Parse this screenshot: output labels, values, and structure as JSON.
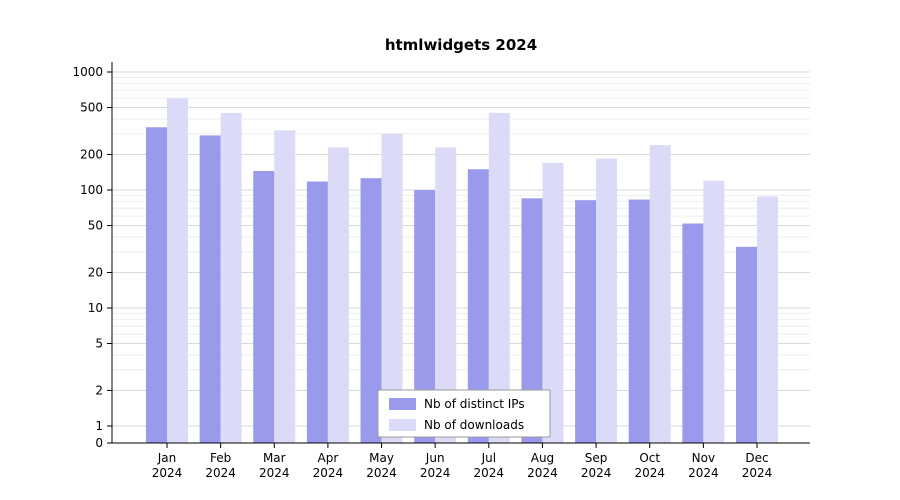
{
  "title": "htmlwidgets 2024",
  "colors": {
    "ips": "#9a9aec",
    "downloads": "#dbdbf8",
    "grid_major": "#d9d9d9",
    "grid_minor": "#eeeeee",
    "axis": "#000000",
    "text": "#000000",
    "background": "#ffffff",
    "legend_border": "#999999",
    "legend_background": "#ffffff"
  },
  "chart_data": {
    "type": "bar",
    "title": "htmlwidgets 2024",
    "xlabel": "",
    "ylabel": "",
    "y_scale": "log",
    "grid": true,
    "legend_position": "bottom-center",
    "categories": [
      "Jan",
      "Feb",
      "Mar",
      "Apr",
      "May",
      "Jun",
      "Jul",
      "Aug",
      "Sep",
      "Oct",
      "Nov",
      "Dec"
    ],
    "category_year": "2024",
    "series": [
      {
        "name": "Nb of distinct IPs",
        "values": [
          340,
          290,
          145,
          118,
          126,
          100,
          150,
          85,
          82,
          83,
          52,
          33
        ]
      },
      {
        "name": "Nb of downloads",
        "values": [
          600,
          450,
          320,
          230,
          300,
          230,
          450,
          170,
          185,
          240,
          120,
          88
        ]
      }
    ],
    "y_ticks": [
      0,
      1,
      2,
      5,
      10,
      20,
      50,
      100,
      200,
      500,
      1000
    ],
    "y_minor_gridlines": [
      3,
      4,
      6,
      7,
      8,
      9,
      30,
      40,
      60,
      70,
      80,
      90,
      300,
      400,
      600,
      700,
      800,
      900
    ],
    "ylim": [
      0,
      1200
    ]
  }
}
